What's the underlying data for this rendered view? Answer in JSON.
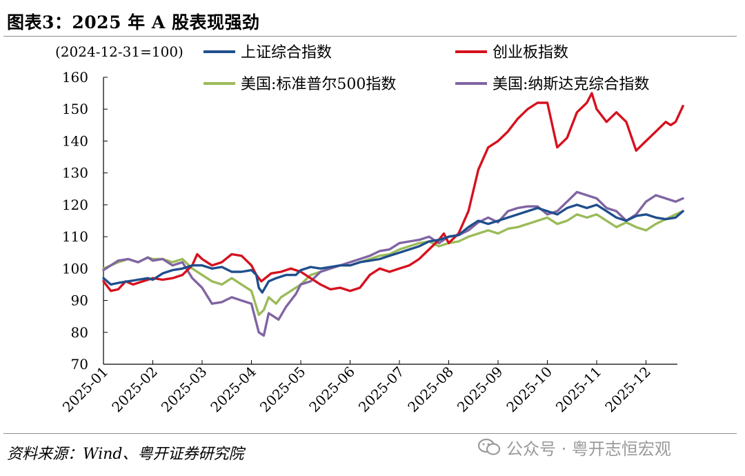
{
  "header": {
    "title": "图表3：2025 年 A 股表现强劲"
  },
  "footer": {
    "source": "资料来源：Wind、粤开证券研究院",
    "watermark": "公众号 · 粤开志恒宏观"
  },
  "colors": {
    "sse": "#1f4e8c",
    "chinext": "#d6111e",
    "sp500": "#9bbb59",
    "nasdaq": "#8064a2",
    "axis": "#000000"
  },
  "chart_data": {
    "type": "line",
    "title": "2025 年 A 股表现强劲",
    "unit_note": "(2024-12-31=100)",
    "xlabel": "",
    "ylabel": "",
    "ylim": [
      70,
      160
    ],
    "yticks": [
      70,
      80,
      90,
      100,
      110,
      120,
      130,
      140,
      150,
      160
    ],
    "xtick_labels": [
      "2025-01",
      "2025-02",
      "2025-03",
      "2025-04",
      "2025-05",
      "2025-06",
      "2025-07",
      "2025-08",
      "2025-09",
      "2025-10",
      "2025-11",
      "2025-12"
    ],
    "grid": false,
    "legend_position": "top",
    "x_unit": "month index (0 = 2025-01-01, 11 = 2025-12-01)",
    "series": [
      {
        "name": "上证综合指数",
        "key": "sse",
        "x": [
          0,
          0.15,
          0.3,
          0.5,
          0.7,
          0.9,
          1.0,
          1.2,
          1.4,
          1.6,
          1.8,
          2.0,
          2.2,
          2.4,
          2.6,
          2.8,
          3.0,
          3.1,
          3.15,
          3.22,
          3.35,
          3.5,
          3.7,
          3.9,
          4.0,
          4.2,
          4.4,
          4.6,
          4.8,
          5.0,
          5.2,
          5.4,
          5.6,
          5.8,
          6.0,
          6.2,
          6.4,
          6.6,
          6.8,
          7.0,
          7.2,
          7.4,
          7.6,
          7.8,
          8.0,
          8.2,
          8.4,
          8.6,
          8.8,
          9.0,
          9.2,
          9.4,
          9.6,
          9.8,
          10.0,
          10.2,
          10.4,
          10.6,
          10.8,
          11.0,
          11.2,
          11.4,
          11.6,
          11.75
        ],
        "y": [
          97,
          95,
          95.5,
          96,
          96.5,
          97,
          96.5,
          98.5,
          99.5,
          100,
          101,
          101,
          100,
          100.5,
          99,
          99,
          99.5,
          98,
          94,
          92.5,
          96,
          97,
          98,
          98,
          99.5,
          100.5,
          100,
          100.5,
          101,
          101,
          102,
          102.5,
          103,
          104,
          105,
          106,
          107,
          108.5,
          109,
          110,
          110.5,
          113,
          115,
          114,
          115,
          116,
          117,
          118,
          119,
          118,
          117,
          119,
          120,
          119,
          120,
          118,
          116,
          115,
          116.5,
          117,
          116,
          115.5,
          116,
          118
        ]
      },
      {
        "name": "创业板指数",
        "key": "chinext",
        "x": [
          0,
          0.15,
          0.3,
          0.45,
          0.6,
          0.8,
          1.0,
          1.2,
          1.4,
          1.6,
          1.8,
          1.9,
          2.0,
          2.2,
          2.4,
          2.6,
          2.8,
          3.0,
          3.1,
          3.2,
          3.4,
          3.6,
          3.8,
          4.0,
          4.2,
          4.4,
          4.6,
          4.8,
          5.0,
          5.2,
          5.4,
          5.6,
          5.8,
          6.0,
          6.2,
          6.4,
          6.6,
          6.8,
          6.9,
          7.0,
          7.2,
          7.4,
          7.6,
          7.8,
          8.0,
          8.2,
          8.4,
          8.6,
          8.8,
          9.0,
          9.2,
          9.4,
          9.6,
          9.8,
          9.9,
          10.0,
          10.2,
          10.4,
          10.6,
          10.8,
          11.0,
          11.2,
          11.4,
          11.5,
          11.6,
          11.75
        ],
        "y": [
          96,
          93,
          93.5,
          96,
          95,
          96,
          97,
          96.5,
          97,
          98,
          101,
          104.5,
          103,
          101,
          102,
          104.5,
          104,
          101,
          98,
          96,
          98.5,
          99,
          100,
          99,
          97,
          95,
          93.5,
          94,
          93,
          94,
          98,
          100,
          99,
          100,
          101,
          103,
          106,
          109,
          111,
          108,
          111,
          118,
          131,
          138,
          140,
          143,
          147,
          150,
          152,
          152,
          138,
          141,
          149,
          152,
          155,
          150,
          146,
          149,
          146,
          137,
          140,
          143,
          146,
          145,
          146,
          151
        ]
      },
      {
        "name": "美国:标准普尔500指数",
        "key": "sp500",
        "x": [
          0,
          0.15,
          0.3,
          0.5,
          0.7,
          0.9,
          1.0,
          1.2,
          1.4,
          1.6,
          1.8,
          2.0,
          2.2,
          2.4,
          2.6,
          2.8,
          3.0,
          3.1,
          3.15,
          3.25,
          3.35,
          3.5,
          3.6,
          3.8,
          4.0,
          4.2,
          4.4,
          4.6,
          4.8,
          5.0,
          5.2,
          5.4,
          5.6,
          5.8,
          6.0,
          6.2,
          6.4,
          6.6,
          6.8,
          7.0,
          7.2,
          7.4,
          7.6,
          7.8,
          8.0,
          8.2,
          8.4,
          8.6,
          8.8,
          9.0,
          9.2,
          9.4,
          9.6,
          9.8,
          10.0,
          10.2,
          10.4,
          10.6,
          10.8,
          11.0,
          11.2,
          11.4,
          11.6,
          11.75
        ],
        "y": [
          100,
          101,
          102,
          103,
          102,
          103.5,
          103,
          103,
          102,
          103,
          100,
          98,
          96,
          95,
          97,
          95,
          93,
          88,
          85.5,
          87,
          91,
          89,
          91,
          93,
          95,
          98,
          99,
          100,
          101,
          101,
          102,
          103,
          104,
          104.5,
          106,
          107,
          108,
          108.5,
          107,
          108,
          108.5,
          110,
          111,
          112,
          111,
          112.5,
          113,
          114,
          115,
          116,
          114,
          115,
          117,
          116,
          117,
          115,
          113,
          114.5,
          113,
          112,
          114,
          115.5,
          117,
          118
        ]
      },
      {
        "name": "美国:纳斯达克综合指数",
        "key": "nasdaq",
        "x": [
          0,
          0.15,
          0.3,
          0.5,
          0.7,
          0.9,
          1.0,
          1.2,
          1.4,
          1.6,
          1.8,
          2.0,
          2.2,
          2.4,
          2.6,
          2.8,
          3.0,
          3.1,
          3.15,
          3.25,
          3.35,
          3.45,
          3.55,
          3.7,
          3.9,
          4.0,
          4.2,
          4.4,
          4.6,
          4.8,
          5.0,
          5.2,
          5.4,
          5.6,
          5.8,
          6.0,
          6.2,
          6.4,
          6.6,
          6.8,
          7.0,
          7.2,
          7.4,
          7.6,
          7.8,
          8.0,
          8.2,
          8.4,
          8.6,
          8.8,
          9.0,
          9.2,
          9.4,
          9.6,
          9.8,
          10.0,
          10.2,
          10.4,
          10.6,
          10.8,
          11.0,
          11.2,
          11.4,
          11.6,
          11.75
        ],
        "y": [
          99.5,
          101,
          102.5,
          103,
          102,
          103.5,
          102.5,
          103,
          101,
          102,
          97,
          94,
          89,
          89.5,
          91,
          90,
          89,
          83,
          80,
          79,
          86,
          85,
          84,
          88,
          92,
          95,
          96,
          99,
          100,
          101,
          102,
          103,
          104,
          105.5,
          106,
          108,
          108.5,
          109,
          110,
          108,
          110,
          110.5,
          112,
          114.5,
          116,
          114.5,
          118,
          119,
          119.5,
          119.5,
          117,
          118,
          121,
          124,
          123,
          122,
          119,
          118,
          115,
          117,
          121,
          123,
          122,
          121,
          122
        ]
      }
    ]
  }
}
